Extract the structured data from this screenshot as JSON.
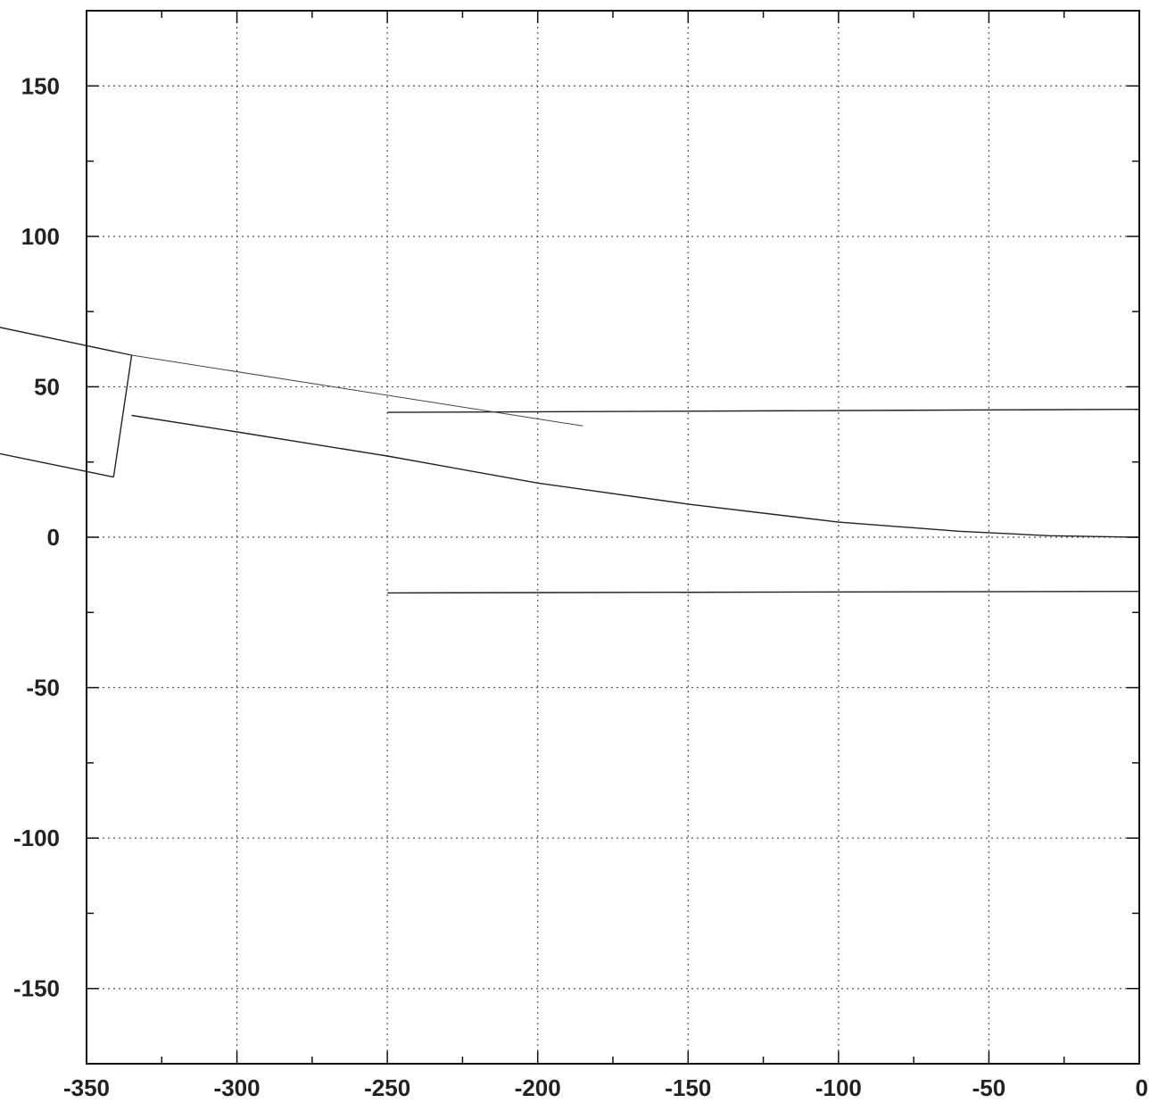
{
  "chart_data": {
    "type": "line",
    "title": "",
    "xlabel": "",
    "ylabel": "",
    "xlim": [
      -350,
      0
    ],
    "ylim": [
      -175,
      175
    ],
    "x_ticks": [
      -350,
      -300,
      -250,
      -200,
      -150,
      -100,
      -50,
      0
    ],
    "x_tick_labels": [
      "-350",
      "-300",
      "-250",
      "-200",
      "-150",
      "-100",
      "-50",
      "0"
    ],
    "y_ticks": [
      150,
      100,
      50,
      0,
      -50,
      -100,
      -150
    ],
    "y_tick_labels": [
      "150",
      "100",
      "50",
      "0",
      "-50",
      "-100",
      "-150"
    ],
    "x_minor_step": 25,
    "y_minor_step": 25,
    "grid": true,
    "legend": "none",
    "series": [
      {
        "x": [
          -250,
          0
        ],
        "y": [
          41.5,
          42.5
        ]
      },
      {
        "x": [
          -250,
          0
        ],
        "y": [
          -18.5,
          -18
        ]
      },
      {
        "x": [
          -335,
          -300,
          -250,
          -200,
          -150,
          -100,
          -60,
          -30,
          0
        ],
        "y": [
          40.5,
          35,
          27,
          18,
          11,
          5,
          2,
          0.5,
          0
        ]
      },
      {
        "x": [
          -380,
          -335
        ],
        "y": [
          70,
          60.5
        ]
      },
      {
        "x": [
          -335,
          -185
        ],
        "y": [
          60.5,
          37
        ]
      },
      {
        "x": [
          -335,
          -341
        ],
        "y": [
          60.5,
          20
        ]
      },
      {
        "x": [
          -341,
          -380
        ],
        "y": [
          20,
          28
        ]
      }
    ]
  }
}
